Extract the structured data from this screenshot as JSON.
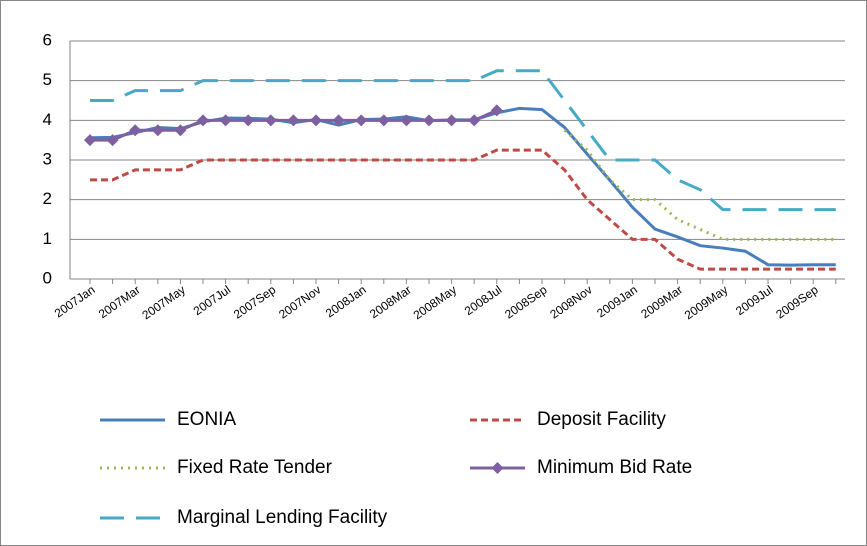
{
  "chart_data": {
    "type": "line",
    "categories": [
      "2007Jan",
      null,
      "2007Mar",
      null,
      "2007May",
      null,
      "2007Jul",
      null,
      "2007Sep",
      null,
      "2007Nov",
      null,
      "2008Jan",
      null,
      "2008Mar",
      null,
      "2008May",
      null,
      "2008Jul",
      null,
      "2008Sep",
      null,
      "2008Nov",
      null,
      "2009Jan",
      null,
      "2009Mar",
      null,
      "2009May",
      null,
      "2009Jul",
      null,
      "2009Sep",
      null
    ],
    "series": [
      {
        "name": "EONIA",
        "color": "#4a7ebb",
        "values": [
          3.56,
          3.57,
          3.69,
          3.82,
          3.79,
          3.96,
          4.06,
          4.05,
          4.03,
          3.94,
          4.02,
          3.88,
          4.02,
          4.03,
          4.09,
          3.99,
          4.01,
          4.01,
          4.19,
          4.3,
          4.27,
          3.82,
          3.15,
          2.49,
          1.81,
          1.26,
          1.06,
          0.84,
          0.78,
          0.7,
          0.36,
          0.35,
          0.36,
          0.36
        ]
      },
      {
        "name": "Deposit Facility",
        "color": "#be4b48",
        "values": [
          2.5,
          2.5,
          2.75,
          2.75,
          2.75,
          3,
          3,
          3,
          3,
          3,
          3,
          3,
          3,
          3,
          3,
          3,
          3,
          3,
          3.25,
          3.25,
          3.25,
          2.75,
          2,
          1.5,
          1,
          1,
          0.5,
          0.25,
          0.25,
          0.25,
          0.25,
          0.25,
          0.25,
          0.25
        ]
      },
      {
        "name": "Fixed Rate Tender",
        "color": "#98b954",
        "values": [
          null,
          null,
          null,
          null,
          null,
          null,
          null,
          null,
          null,
          null,
          null,
          null,
          null,
          null,
          null,
          null,
          null,
          null,
          null,
          null,
          null,
          3.75,
          3.25,
          2.5,
          2,
          2,
          1.5,
          1.25,
          1,
          1,
          1,
          1,
          1,
          1
        ]
      },
      {
        "name": "Minimum Bid Rate",
        "color": "#7d60a0",
        "marker": "diamond",
        "values": [
          3.5,
          3.5,
          3.75,
          3.75,
          3.75,
          4,
          4,
          4,
          4,
          4,
          4,
          4,
          4,
          4,
          4,
          4,
          4,
          4,
          4.25,
          null,
          null,
          null,
          null,
          null,
          null,
          null,
          null,
          null,
          null,
          null,
          null,
          null,
          null,
          null
        ]
      },
      {
        "name": "Marginal Lending Facility",
        "color": "#46aac5",
        "values": [
          4.5,
          4.5,
          4.75,
          4.75,
          4.75,
          5,
          5,
          5,
          5,
          5,
          5,
          5,
          5,
          5,
          5,
          5,
          5,
          5,
          5.25,
          5.25,
          5.25,
          4.5,
          3.75,
          3,
          3,
          3,
          2.5,
          2.25,
          1.75,
          1.75,
          1.75,
          1.75,
          1.75,
          1.75
        ]
      }
    ],
    "ylim": [
      0,
      6
    ],
    "yticks": [
      0,
      1,
      2,
      3,
      4,
      5,
      6
    ],
    "grid": true
  }
}
